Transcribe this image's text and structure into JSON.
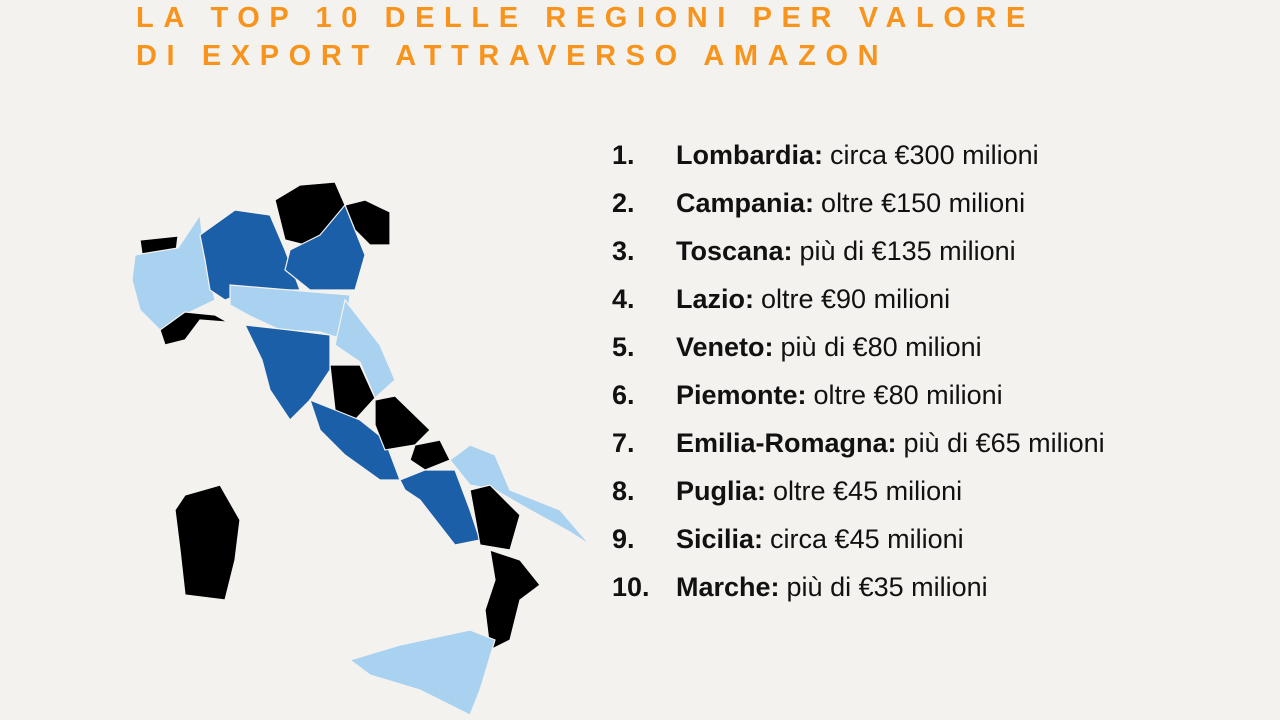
{
  "title": [
    "LA TOP 10 DELLE REGIONI PER VALORE",
    "DI EXPORT ATTRAVERSO AMAZON"
  ],
  "items": [
    {
      "rank": "1.",
      "region": "Lombardia:",
      "detail": "circa €300 milioni"
    },
    {
      "rank": "2.",
      "region": "Campania:",
      "detail": "oltre €150 milioni"
    },
    {
      "rank": "3.",
      "region": "Toscana:",
      "detail": "più di €135 milioni"
    },
    {
      "rank": "4.",
      "region": "Lazio:",
      "detail": "oltre €90 milioni"
    },
    {
      "rank": "5.",
      "region": "Veneto:",
      "detail": "più di €80 milioni"
    },
    {
      "rank": "6.",
      "region": "Piemonte:",
      "detail": "oltre €80 milioni"
    },
    {
      "rank": "7.",
      "region": "Emilia-Romagna:",
      "detail": "più di €65 milioni"
    },
    {
      "rank": "8.",
      "region": "Puglia:",
      "detail": "oltre €45 milioni"
    },
    {
      "rank": "9.",
      "region": "Sicilia:",
      "detail": "circa €45 milioni"
    },
    {
      "rank": "10.",
      "region": "Marche:",
      "detail": "più di €35 milioni"
    }
  ]
}
